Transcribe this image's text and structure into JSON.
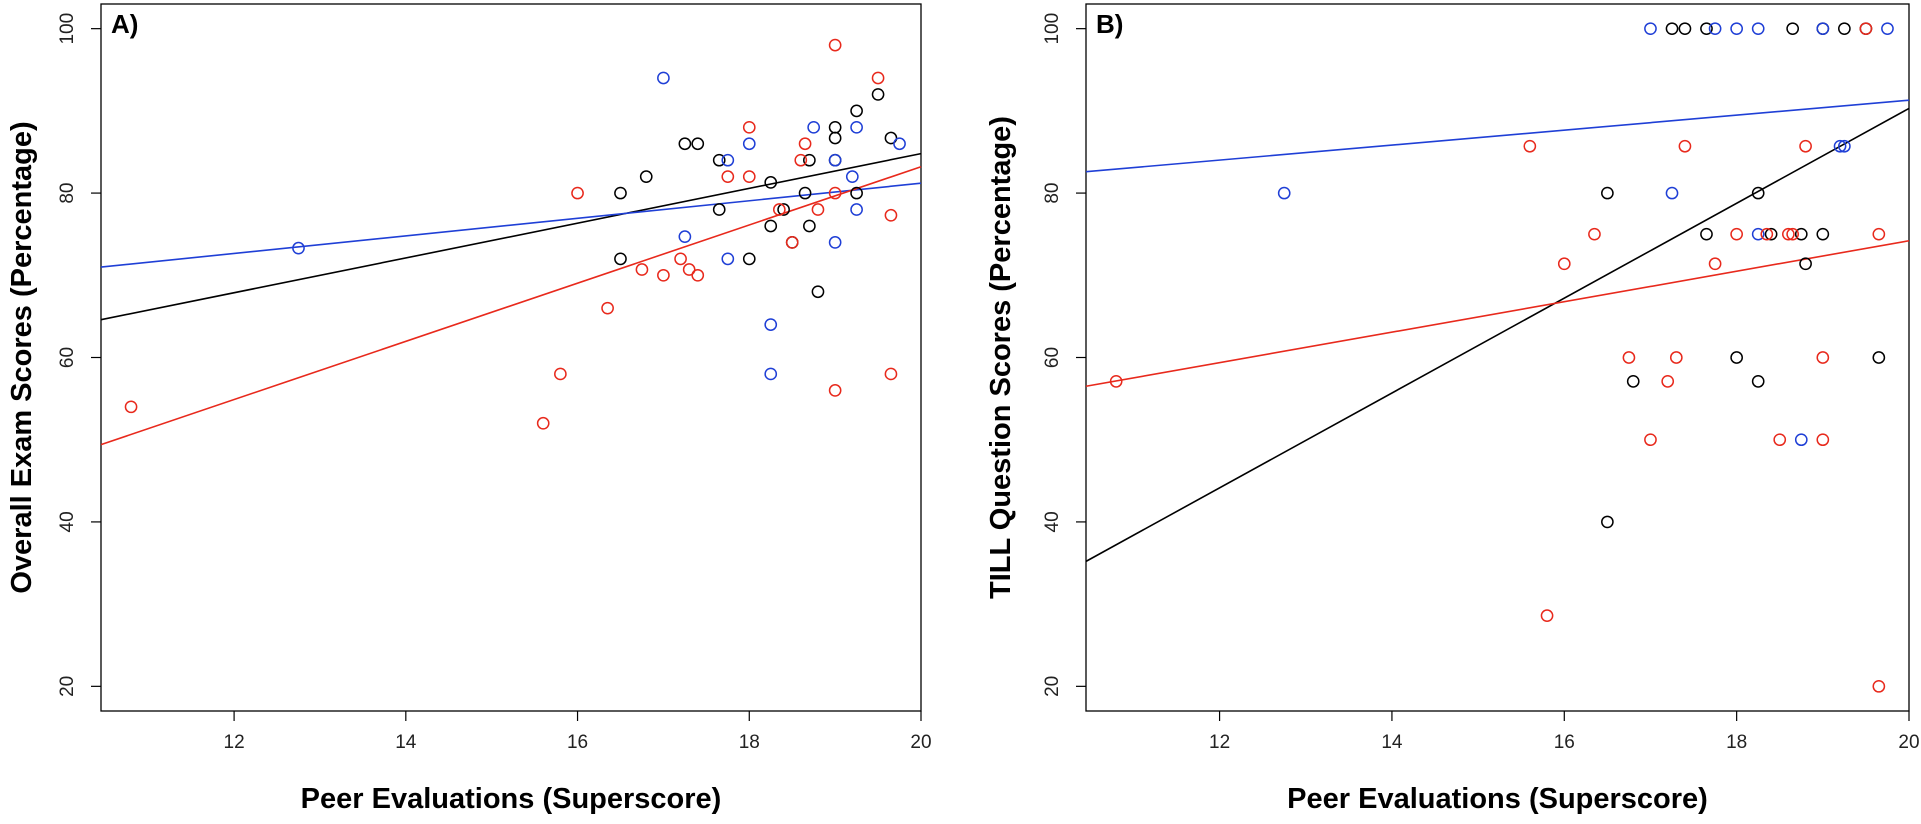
{
  "chart_data": [
    {
      "type": "scatter",
      "panel_label": "A)",
      "xlabel": "Peer Evaluations (Superscore)",
      "ylabel": "Overall Exam Scores (Percentage)",
      "xlim": [
        10.45,
        20.0
      ],
      "ylim": [
        17,
        103
      ],
      "x_ticks": [
        12,
        14,
        16,
        18,
        20
      ],
      "y_ticks": [
        20,
        40,
        60,
        80,
        100
      ],
      "series": [
        {
          "name": "black",
          "color": "#000000",
          "points": [
            [
              16.5,
              72
            ],
            [
              16.5,
              80
            ],
            [
              16.8,
              82
            ],
            [
              17.25,
              86
            ],
            [
              17.4,
              86
            ],
            [
              17.65,
              84
            ],
            [
              17.65,
              78
            ],
            [
              18.0,
              72
            ],
            [
              18.25,
              81.3
            ],
            [
              18.25,
              76
            ],
            [
              18.65,
              80
            ],
            [
              18.7,
              76
            ],
            [
              18.7,
              84
            ],
            [
              18.8,
              68
            ],
            [
              19.0,
              88
            ],
            [
              19.0,
              86.7
            ],
            [
              19.0,
              84
            ],
            [
              19.25,
              90
            ],
            [
              19.25,
              80
            ],
            [
              19.5,
              92
            ],
            [
              19.65,
              86.7
            ],
            [
              18.4,
              78
            ],
            [
              18.5,
              74
            ]
          ],
          "fit_line": [
            [
              10.45,
              64.6
            ],
            [
              20.0,
              84.8
            ]
          ]
        },
        {
          "name": "blue",
          "color": "#1f3fd6",
          "points": [
            [
              12.75,
              73.3
            ],
            [
              17.0,
              94
            ],
            [
              17.25,
              74.7
            ],
            [
              17.75,
              84
            ],
            [
              17.75,
              72
            ],
            [
              18.0,
              86
            ],
            [
              18.25,
              64
            ],
            [
              18.25,
              58
            ],
            [
              18.75,
              88
            ],
            [
              19.0,
              84
            ],
            [
              19.0,
              74
            ],
            [
              19.2,
              82
            ],
            [
              19.25,
              88
            ],
            [
              19.25,
              78
            ],
            [
              19.75,
              86
            ]
          ],
          "fit_line": [
            [
              10.45,
              71.0
            ],
            [
              20.0,
              81.2
            ]
          ]
        },
        {
          "name": "red",
          "color": "#e8291c",
          "points": [
            [
              10.8,
              54
            ],
            [
              15.6,
              52
            ],
            [
              15.8,
              58
            ],
            [
              16.0,
              80
            ],
            [
              16.35,
              66
            ],
            [
              16.75,
              70.7
            ],
            [
              17.0,
              70
            ],
            [
              17.2,
              72
            ],
            [
              17.3,
              70.7
            ],
            [
              17.4,
              70
            ],
            [
              17.75,
              82
            ],
            [
              18.0,
              88
            ],
            [
              18.0,
              82
            ],
            [
              18.35,
              78
            ],
            [
              18.5,
              74
            ],
            [
              18.6,
              84
            ],
            [
              18.65,
              86
            ],
            [
              18.8,
              78
            ],
            [
              19.0,
              98
            ],
            [
              19.0,
              80
            ],
            [
              19.0,
              56
            ],
            [
              19.5,
              94
            ],
            [
              19.65,
              77.3
            ],
            [
              19.65,
              58
            ]
          ],
          "fit_line": [
            [
              10.45,
              49.4
            ],
            [
              20.0,
              83.2
            ]
          ]
        }
      ]
    },
    {
      "type": "scatter",
      "panel_label": "B)",
      "xlabel": "Peer Evaluations (Superscore)",
      "ylabel": "TILL Question Scores (Percentage)",
      "xlim": [
        10.45,
        20.0
      ],
      "ylim": [
        17,
        103
      ],
      "x_ticks": [
        12,
        14,
        16,
        18,
        20
      ],
      "y_ticks": [
        20,
        40,
        60,
        80,
        100
      ],
      "series": [
        {
          "name": "black",
          "color": "#000000",
          "points": [
            [
              16.5,
              80
            ],
            [
              16.5,
              40
            ],
            [
              16.8,
              57.1
            ],
            [
              17.25,
              100
            ],
            [
              17.4,
              100
            ],
            [
              17.65,
              100
            ],
            [
              17.65,
              75
            ],
            [
              18.0,
              60
            ],
            [
              18.25,
              80
            ],
            [
              18.25,
              57.1
            ],
            [
              18.4,
              75
            ],
            [
              18.65,
              100
            ],
            [
              18.75,
              75
            ],
            [
              18.8,
              71.4
            ],
            [
              19.0,
              75
            ],
            [
              19.0,
              100
            ],
            [
              19.25,
              100
            ],
            [
              19.5,
              100
            ],
            [
              19.65,
              60
            ]
          ],
          "fit_line": [
            [
              10.45,
              35.2
            ],
            [
              20.0,
              90.3
            ]
          ]
        },
        {
          "name": "blue",
          "color": "#1f3fd6",
          "points": [
            [
              12.75,
              80
            ],
            [
              17.0,
              100
            ],
            [
              17.25,
              80
            ],
            [
              17.75,
              100
            ],
            [
              18.0,
              100
            ],
            [
              18.25,
              100
            ],
            [
              18.25,
              75
            ],
            [
              18.75,
              50
            ],
            [
              19.0,
              100
            ],
            [
              19.2,
              85.7
            ],
            [
              19.25,
              85.7
            ],
            [
              19.75,
              100
            ]
          ],
          "fit_line": [
            [
              10.45,
              82.6
            ],
            [
              20.0,
              91.3
            ]
          ]
        },
        {
          "name": "red",
          "color": "#e8291c",
          "points": [
            [
              10.8,
              57.1
            ],
            [
              15.6,
              85.7
            ],
            [
              15.8,
              28.6
            ],
            [
              16.0,
              71.4
            ],
            [
              16.35,
              75
            ],
            [
              16.75,
              60
            ],
            [
              17.0,
              50
            ],
            [
              17.2,
              57.1
            ],
            [
              17.3,
              60
            ],
            [
              17.4,
              85.7
            ],
            [
              17.75,
              71.4
            ],
            [
              18.0,
              75
            ],
            [
              18.35,
              75
            ],
            [
              18.5,
              50
            ],
            [
              18.6,
              75
            ],
            [
              18.65,
              75
            ],
            [
              18.8,
              85.7
            ],
            [
              19.0,
              60
            ],
            [
              19.0,
              50
            ],
            [
              19.5,
              100
            ],
            [
              19.65,
              75
            ],
            [
              19.65,
              20
            ]
          ],
          "fit_line": [
            [
              10.45,
              56.5
            ],
            [
              20.0,
              74.2
            ]
          ]
        }
      ]
    }
  ]
}
